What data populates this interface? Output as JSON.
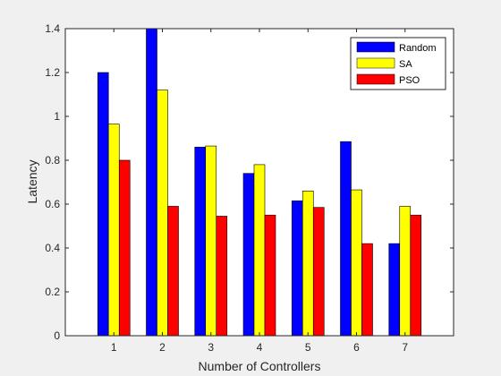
{
  "chart_data": {
    "type": "bar",
    "categories": [
      "1",
      "2",
      "3",
      "4",
      "5",
      "6",
      "7"
    ],
    "series": [
      {
        "name": "Random",
        "color": "#0000ff",
        "values": [
          1.2,
          1.4,
          0.86,
          0.74,
          0.615,
          0.885,
          0.42
        ]
      },
      {
        "name": "SA",
        "color": "#ffff00",
        "values": [
          0.965,
          1.12,
          0.865,
          0.78,
          0.66,
          0.665,
          0.59
        ]
      },
      {
        "name": "PSO",
        "color": "#ff0000",
        "values": [
          0.8,
          0.59,
          0.545,
          0.55,
          0.585,
          0.42,
          0.55
        ]
      }
    ],
    "xlabel": "Number of Controllers",
    "ylabel": "Latency",
    "ylim": [
      0,
      1.4
    ],
    "yticks": [
      "0",
      "0.2",
      "0.4",
      "0.6",
      "0.8",
      "1",
      "1.2",
      "1.4"
    ],
    "legend_position": "top-right",
    "grid": false
  }
}
